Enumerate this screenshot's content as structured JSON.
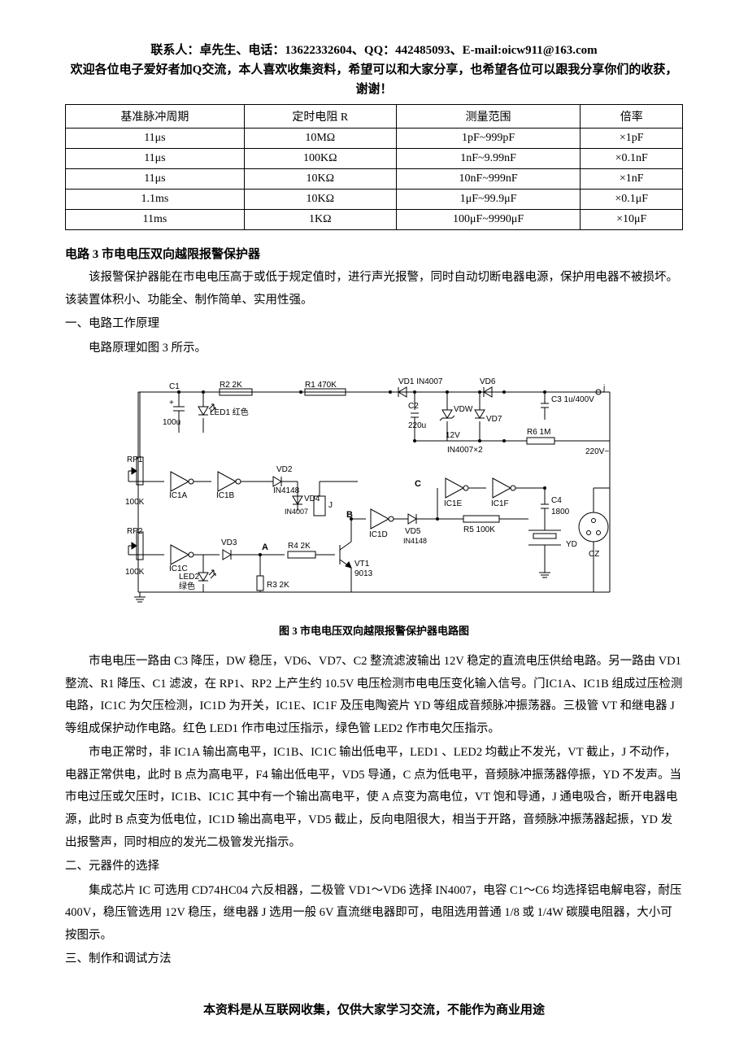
{
  "header": {
    "line1": "联系人：卓先生、电话：13622332604、QQ：442485093、E-mail:oicw911@163.com",
    "line2": "欢迎各位电子爱好者加Q交流，本人喜欢收集资料，希望可以和大家分享，也希望各位可以跟我分享你们的收获，谢谢！"
  },
  "table": {
    "columns": [
      "基准脉冲周期",
      "定时电阻 R",
      "测量范围",
      "倍率"
    ],
    "rows": [
      [
        "11μs",
        "10MΩ",
        "1pF~999pF",
        "×1pF"
      ],
      [
        "11μs",
        "100KΩ",
        "1nF~9.99nF",
        "×0.1nF"
      ],
      [
        "11μs",
        "10KΩ",
        "10nF~999nF",
        "×1nF"
      ],
      [
        "1.1ms",
        "10KΩ",
        "1μF~99.9μF",
        "×0.1μF"
      ],
      [
        "11ms",
        "1KΩ",
        "100μF~9990μF",
        "×10μF"
      ]
    ]
  },
  "circuit3": {
    "title": "电路 3   市电电压双向越限报警保护器",
    "intro": "该报警保护器能在市电电压高于或低于规定值时，进行声光报警，同时自动切断电器电源，保护用电器不被损坏。该装置体积小、功能全、制作简单、实用性强。",
    "section1_title": "一、电路工作原理",
    "section1_line": "电路原理如图 3 所示。",
    "fig_caption": "图 3   市电电压双向越限报警保护器电路图",
    "para_b1": "市电电压一路由 C3 降压，DW 稳压，VD6、VD7、C2 整流滤波输出 12V 稳定的直流电压供给电路。另一路由 VD1 整流、R1 降压、C1 滤波，在 RP1、RP2 上产生约 10.5V 电压检测市电电压变化输入信号。门IC1A、IC1B 组成过压检测电路，IC1C 为欠压检测，IC1D 为开关，IC1E、IC1F 及压电陶瓷片 YD 等组成音频脉冲振荡器。三极管 VT 和继电器 J 等组成保护动作电路。红色 LED1 作市电过压指示，绿色管 LED2 作市电欠压指示。",
    "para_b2": "市电正常时，非 IC1A 输出高电平，IC1B、IC1C 输出低电平，LED1 、LED2 均截止不发光，VT 截止，J 不动作，电器正常供电，此时 B 点为高电平，F4 输出低电平，VD5 导通，C 点为低电平，音频脉冲振荡器停振，YD 不发声。当市电过压或欠压时，IC1B、IC1C 其中有一个输出高电平，使 A 点变为高电位，VT 饱和导通，J 通电吸合，断开电器电源，此时 B 点变为低电位，IC1D 输出高电平，VD5 截止，反向电阻很大，相当于开路，音频脉冲振荡器起振，YD 发出报警声，同时相应的发光二极管发光指示。",
    "section2_title": "二、元器件的选择",
    "para_c1": "集成芯片 IC 可选用 CD74HC04 六反相器，二极管 VD1～VD6 选择 IN4007，电容 C1～C6 均选择铝电解电容，耐压 400V，稳压管选用 12V 稳压，继电器 J 选用一般 6V 直流继电器即可，电阻选用普通 1/8 或 1/4W 碳膜电阻器，大小可按图示。",
    "section3_title": "三、制作和调试方法"
  },
  "footer": "本资料是从互联网收集，仅供大家学习交流，不能作为商业用途",
  "schematic": {
    "stroke": "#000000",
    "bg": "#ffffff",
    "font": "11px sans-serif",
    "font_small": "10px sans-serif",
    "labels": {
      "C1": "C1",
      "C1v": "100u",
      "R2": "R2  2K",
      "R1": "R1   470K",
      "VD1": "VD1   IN4007",
      "VD6": "VD6",
      "C2": "C2",
      "C2v": "220u",
      "VDW": "VDW",
      "V12": "12V",
      "VD7": "VD7",
      "C3": "C3  1u/400V",
      "R6": "R6   1M",
      "IN4007x2": "IN4007×2",
      "V220": "220V~",
      "LED1": "LED1 红色",
      "RP1": "RP1",
      "RP2": "RP2",
      "K100": "100K",
      "IC1A": "IC1A",
      "IC1B": "IC1B",
      "IC1C": "IC1C",
      "IC1D": "IC1D",
      "IC1E": "IC1E",
      "IC1F": "IC1F",
      "VD2": "VD2",
      "IN4148": "IN4148",
      "VD3": "VD3",
      "VD4": "VD4",
      "VD5": "VD5",
      "LED2": "LED2",
      "green": "绿色",
      "R3": "R3  2K",
      "R4": "R4   2K",
      "VT1": "VT1",
      "VT1t": "9013",
      "R5": "R5   100K",
      "C4": "C4",
      "C4v": "1800",
      "YD": "YD",
      "CZ": "CZ",
      "A": "A",
      "B": "B",
      "C": "C",
      "J": "J",
      "j2": "j"
    }
  }
}
